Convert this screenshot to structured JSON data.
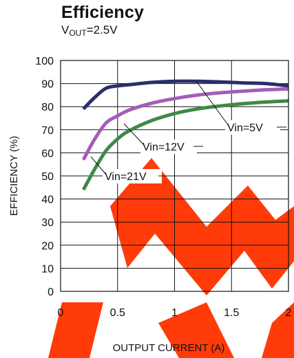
{
  "header": {
    "title": "Efficiency",
    "subtitle_main": "V",
    "subtitle_sub": "OUT",
    "subtitle_rest": "=2.5V"
  },
  "chart_data": {
    "type": "line",
    "title": "Efficiency",
    "subtitle": "VOUT=2.5V",
    "xlabel": "OUTPUT CURRENT (A)",
    "ylabel": "EFFICIENCY (%)",
    "xlim": [
      0,
      2
    ],
    "ylim": [
      0,
      100
    ],
    "x_ticks": [
      "0",
      "0.5",
      "1",
      "1.5",
      "2"
    ],
    "y_ticks": [
      "0",
      "10",
      "20",
      "30",
      "40",
      "50",
      "60",
      "70",
      "80",
      "90",
      "100"
    ],
    "grid": true,
    "series": [
      {
        "name": "Vin=5V",
        "color": "#2a2f6a",
        "x": [
          0.2,
          0.3,
          0.4,
          0.5,
          0.6,
          0.8,
          1.0,
          1.2,
          1.4,
          1.6,
          1.8,
          2.0
        ],
        "y": [
          79,
          84,
          88,
          89,
          89.5,
          90.5,
          91,
          91,
          90.7,
          90.3,
          90,
          89
        ]
      },
      {
        "name": "Vin=12V",
        "color": "#a55cb8",
        "x": [
          0.2,
          0.3,
          0.4,
          0.5,
          0.6,
          0.8,
          1.0,
          1.2,
          1.4,
          1.6,
          1.8,
          2.0
        ],
        "y": [
          57,
          66,
          73,
          76,
          78.5,
          81.5,
          83.5,
          85,
          86,
          86.7,
          87.3,
          87.7
        ]
      },
      {
        "name": "Vin=21V",
        "color": "#3d8a45",
        "x": [
          0.2,
          0.3,
          0.4,
          0.5,
          0.6,
          0.8,
          1.0,
          1.2,
          1.4,
          1.6,
          1.8,
          2.0
        ],
        "y": [
          44,
          53,
          61,
          66,
          69.5,
          74,
          77,
          79,
          80.3,
          81.3,
          82,
          82.5
        ]
      }
    ],
    "annotations": [
      {
        "text": "Vin=5V",
        "series": "Vin=5V"
      },
      {
        "text": "Vin=12V",
        "series": "Vin=12V"
      },
      {
        "text": "Vin=21V",
        "series": "Vin=21V"
      }
    ]
  }
}
